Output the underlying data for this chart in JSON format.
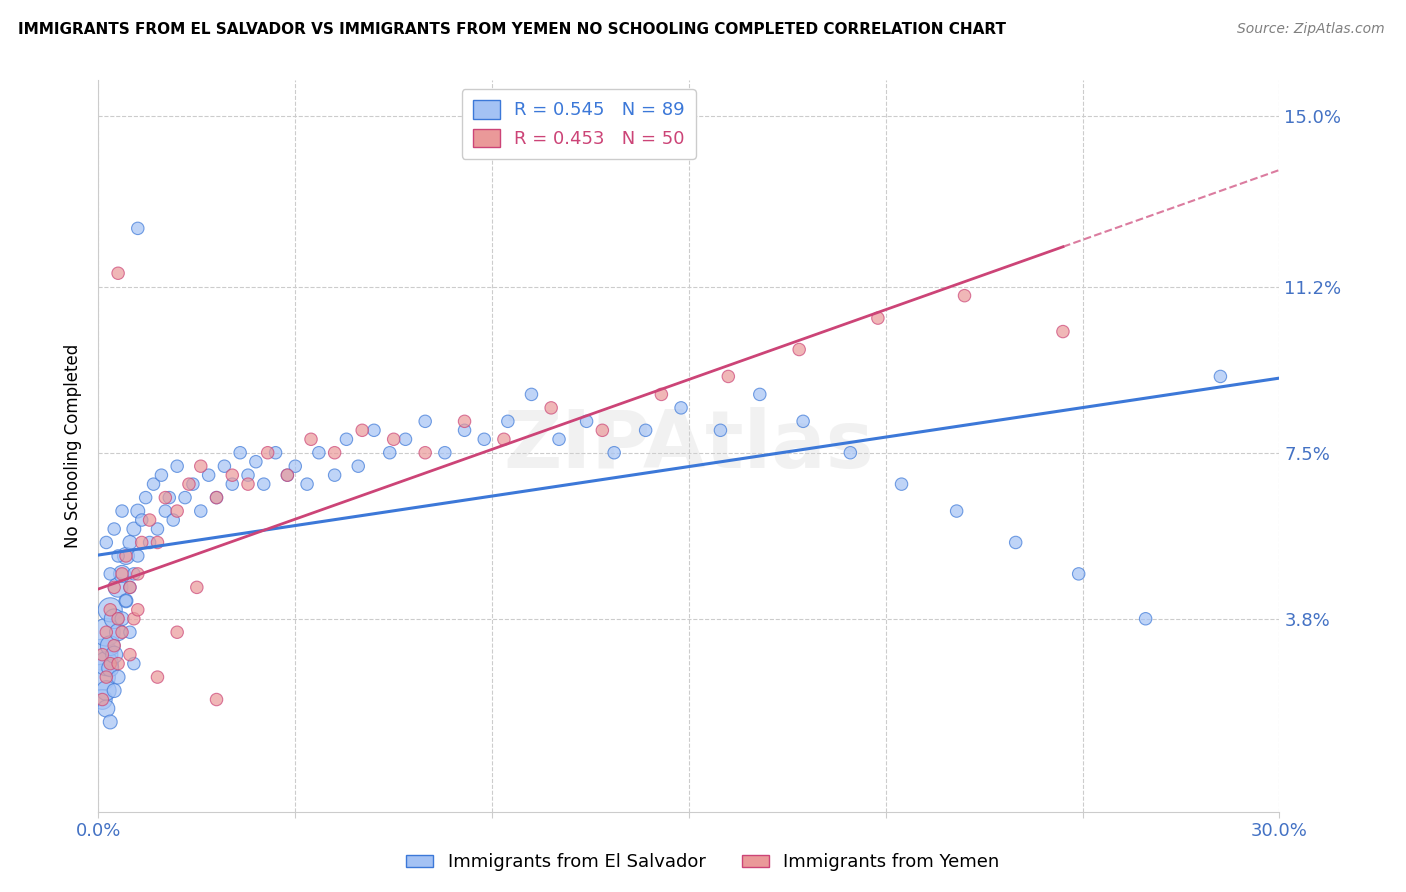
{
  "title": "IMMIGRANTS FROM EL SALVADOR VS IMMIGRANTS FROM YEMEN NO SCHOOLING COMPLETED CORRELATION CHART",
  "source": "Source: ZipAtlas.com",
  "ylabel": "No Schooling Completed",
  "legend_label1": "Immigrants from El Salvador",
  "legend_label2": "Immigrants from Yemen",
  "r1": 0.545,
  "n1": 89,
  "r2": 0.453,
  "n2": 50,
  "color1": "#a4c2f4",
  "color2": "#ea9999",
  "line_color1": "#3c78d8",
  "line_color2": "#cc4477",
  "axis_label_color": "#4472c4",
  "xlim": [
    0.0,
    0.3
  ],
  "ylim": [
    -0.005,
    0.158
  ],
  "yticks": [
    0.038,
    0.075,
    0.112,
    0.15
  ],
  "ytick_labels": [
    "3.8%",
    "7.5%",
    "11.2%",
    "15.0%"
  ],
  "watermark": "ZIPAtlas",
  "el_salvador_x": [
    0.001,
    0.001,
    0.001,
    0.002,
    0.002,
    0.002,
    0.002,
    0.003,
    0.003,
    0.003,
    0.003,
    0.004,
    0.004,
    0.004,
    0.005,
    0.005,
    0.005,
    0.006,
    0.006,
    0.007,
    0.007,
    0.008,
    0.008,
    0.009,
    0.009,
    0.01,
    0.01,
    0.011,
    0.012,
    0.013,
    0.014,
    0.015,
    0.016,
    0.017,
    0.018,
    0.019,
    0.02,
    0.022,
    0.024,
    0.026,
    0.028,
    0.03,
    0.032,
    0.034,
    0.036,
    0.038,
    0.04,
    0.042,
    0.045,
    0.048,
    0.05,
    0.053,
    0.056,
    0.06,
    0.063,
    0.066,
    0.07,
    0.074,
    0.078,
    0.083,
    0.088,
    0.093,
    0.098,
    0.104,
    0.11,
    0.117,
    0.124,
    0.131,
    0.139,
    0.148,
    0.158,
    0.168,
    0.179,
    0.191,
    0.204,
    0.218,
    0.233,
    0.249,
    0.266,
    0.285,
    0.002,
    0.003,
    0.004,
    0.005,
    0.006,
    0.007,
    0.008,
    0.009,
    0.01
  ],
  "el_salvador_y": [
    0.03,
    0.025,
    0.02,
    0.035,
    0.028,
    0.022,
    0.018,
    0.04,
    0.032,
    0.027,
    0.015,
    0.038,
    0.03,
    0.022,
    0.045,
    0.035,
    0.025,
    0.048,
    0.038,
    0.052,
    0.042,
    0.055,
    0.045,
    0.058,
    0.048,
    0.062,
    0.052,
    0.06,
    0.065,
    0.055,
    0.068,
    0.058,
    0.07,
    0.062,
    0.065,
    0.06,
    0.072,
    0.065,
    0.068,
    0.062,
    0.07,
    0.065,
    0.072,
    0.068,
    0.075,
    0.07,
    0.073,
    0.068,
    0.075,
    0.07,
    0.072,
    0.068,
    0.075,
    0.07,
    0.078,
    0.072,
    0.08,
    0.075,
    0.078,
    0.082,
    0.075,
    0.08,
    0.078,
    0.082,
    0.088,
    0.078,
    0.082,
    0.075,
    0.08,
    0.085,
    0.08,
    0.088,
    0.082,
    0.075,
    0.068,
    0.062,
    0.055,
    0.048,
    0.038,
    0.092,
    0.055,
    0.048,
    0.058,
    0.052,
    0.062,
    0.042,
    0.035,
    0.028,
    0.125
  ],
  "el_salvador_size": [
    500,
    350,
    200,
    400,
    300,
    200,
    150,
    300,
    200,
    150,
    100,
    200,
    150,
    100,
    200,
    150,
    100,
    150,
    100,
    150,
    100,
    100,
    80,
    100,
    80,
    100,
    80,
    80,
    80,
    80,
    80,
    80,
    80,
    80,
    80,
    80,
    80,
    80,
    80,
    80,
    80,
    80,
    80,
    80,
    80,
    80,
    80,
    80,
    80,
    80,
    80,
    80,
    80,
    80,
    80,
    80,
    80,
    80,
    80,
    80,
    80,
    80,
    80,
    80,
    80,
    80,
    80,
    80,
    80,
    80,
    80,
    80,
    80,
    80,
    80,
    80,
    80,
    80,
    80,
    80,
    80,
    80,
    80,
    80,
    80,
    80,
    80,
    80,
    80
  ],
  "yemen_x": [
    0.001,
    0.001,
    0.002,
    0.002,
    0.003,
    0.003,
    0.004,
    0.004,
    0.005,
    0.005,
    0.006,
    0.006,
    0.007,
    0.008,
    0.009,
    0.01,
    0.011,
    0.013,
    0.015,
    0.017,
    0.02,
    0.023,
    0.026,
    0.03,
    0.034,
    0.038,
    0.043,
    0.048,
    0.054,
    0.06,
    0.067,
    0.075,
    0.083,
    0.093,
    0.103,
    0.115,
    0.128,
    0.143,
    0.16,
    0.178,
    0.198,
    0.22,
    0.245,
    0.01,
    0.02,
    0.03,
    0.005,
    0.008,
    0.015,
    0.025
  ],
  "yemen_y": [
    0.03,
    0.02,
    0.035,
    0.025,
    0.04,
    0.028,
    0.045,
    0.032,
    0.038,
    0.028,
    0.048,
    0.035,
    0.052,
    0.045,
    0.038,
    0.048,
    0.055,
    0.06,
    0.055,
    0.065,
    0.062,
    0.068,
    0.072,
    0.065,
    0.07,
    0.068,
    0.075,
    0.07,
    0.078,
    0.075,
    0.08,
    0.078,
    0.075,
    0.082,
    0.078,
    0.085,
    0.08,
    0.088,
    0.092,
    0.098,
    0.105,
    0.11,
    0.102,
    0.04,
    0.035,
    0.02,
    0.115,
    0.03,
    0.025,
    0.045
  ],
  "yemen_size": [
    80,
    80,
    80,
    80,
    80,
    80,
    80,
    80,
    80,
    80,
    80,
    80,
    80,
    80,
    80,
    80,
    80,
    80,
    80,
    80,
    80,
    80,
    80,
    80,
    80,
    80,
    80,
    80,
    80,
    80,
    80,
    80,
    80,
    80,
    80,
    80,
    80,
    80,
    80,
    80,
    80,
    80,
    80,
    80,
    80,
    80,
    80,
    80,
    80,
    80
  ],
  "es_trend": [
    0.035,
    0.09
  ],
  "ye_trend": [
    0.032,
    0.11
  ],
  "ye_trend_dashed_start": 0.18
}
